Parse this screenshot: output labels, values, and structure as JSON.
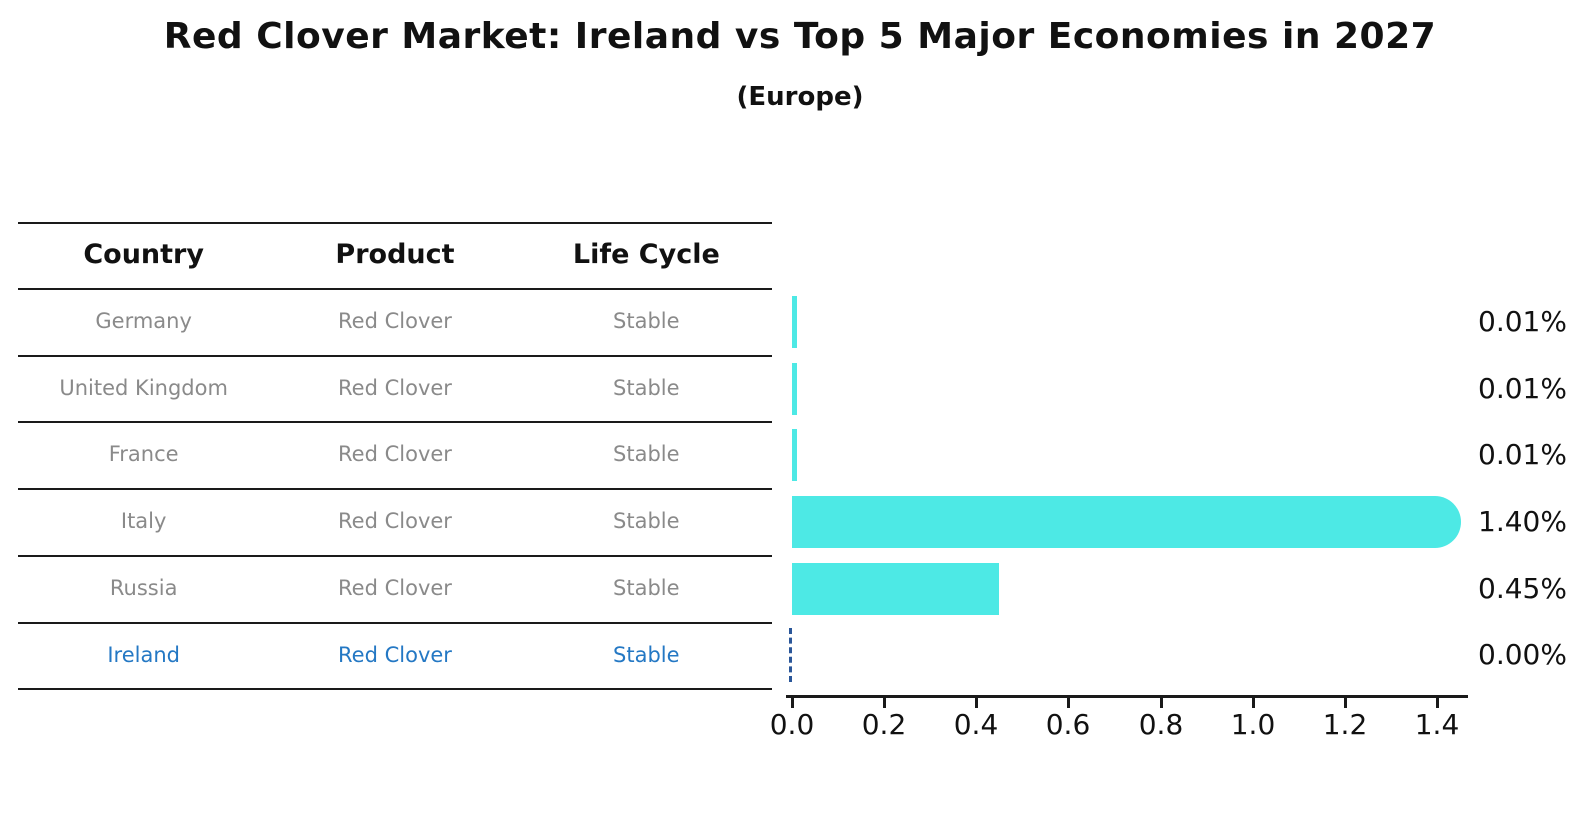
{
  "title": "Red Clover Market: Ireland vs Top 5 Major Economies in 2027",
  "subtitle": "(Europe)",
  "table": {
    "headers": {
      "country": "Country",
      "product": "Product",
      "life_cycle": "Life Cycle"
    },
    "rows": [
      {
        "country": "Germany",
        "product": "Red Clover",
        "life_cycle": "Stable",
        "highlighted": false
      },
      {
        "country": "United Kingdom",
        "product": "Red Clover",
        "life_cycle": "Stable",
        "highlighted": false
      },
      {
        "country": "France",
        "product": "Red Clover",
        "life_cycle": "Stable",
        "highlighted": false
      },
      {
        "country": "Italy",
        "product": "Red Clover",
        "life_cycle": "Stable",
        "highlighted": false
      },
      {
        "country": "Russia",
        "product": "Red Clover",
        "life_cycle": "Stable",
        "highlighted": false
      },
      {
        "country": "Ireland",
        "product": "Red Clover",
        "life_cycle": "Stable",
        "highlighted": true
      }
    ]
  },
  "chart_data": {
    "type": "bar",
    "orientation": "horizontal",
    "title": "Red Clover Market: Ireland vs Top 5 Major Economies in 2027",
    "subtitle": "(Europe)",
    "categories": [
      "Germany",
      "United Kingdom",
      "France",
      "Italy",
      "Russia",
      "Ireland"
    ],
    "values": [
      0.01,
      0.01,
      0.01,
      1.4,
      0.45,
      0.0
    ],
    "value_labels": [
      "0.01%",
      "0.01%",
      "0.01%",
      "1.40%",
      "0.45%",
      "0.00%"
    ],
    "x_tick_labels": [
      "0.0",
      "0.2",
      "0.4",
      "0.6",
      "0.8",
      "1.0",
      "1.2",
      "1.4"
    ],
    "xlim": [
      0.0,
      1.47
    ],
    "grid": false,
    "legend": null,
    "bar_color": "#4DE9E5",
    "zero_marker_color": "#2A5699",
    "highlight_text_color": "#2478C4",
    "muted_text_color": "#8A8A8A",
    "value_unit": "%"
  }
}
